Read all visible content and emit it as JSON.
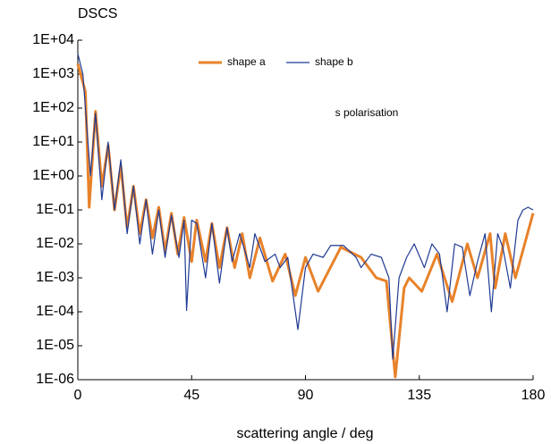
{
  "chart_data": {
    "type": "line",
    "title": "DSCS",
    "x_label": "scattering angle / deg",
    "annotation": "s polarisation",
    "log_y": true,
    "grid": false,
    "legend": "top",
    "xlim": [
      0,
      180
    ],
    "xticks": [
      0,
      45,
      90,
      135,
      180
    ],
    "ylim": [
      1e-06,
      10000
    ],
    "yticks": [
      {
        "value": 1e-06,
        "label": "1E-06"
      },
      {
        "value": 1e-05,
        "label": "1E-05"
      },
      {
        "value": 0.0001,
        "label": "1E-04"
      },
      {
        "value": 0.001,
        "label": "1E-03"
      },
      {
        "value": 0.01,
        "label": "1E-02"
      },
      {
        "value": 0.1,
        "label": "1E-01"
      },
      {
        "value": 1,
        "label": "1E+00"
      },
      {
        "value": 10,
        "label": "1E+01"
      },
      {
        "value": 100,
        "label": "1E+02"
      },
      {
        "value": 1000,
        "label": "1E+03"
      },
      {
        "value": 10000,
        "label": "1E+04"
      }
    ],
    "series": [
      {
        "name": "shape a",
        "color": "#e8822a",
        "width": 3,
        "x": [
          0,
          3,
          4.5,
          7,
          9.5,
          12,
          14.5,
          17,
          19.5,
          22,
          24.5,
          27,
          29.5,
          32,
          34.5,
          37,
          39.5,
          42,
          45,
          47,
          50.5,
          53,
          56,
          59,
          62,
          65,
          68,
          72,
          77,
          82,
          86,
          90,
          95,
          104,
          112,
          118,
          122,
          125.5,
          129,
          131,
          136,
          142,
          148,
          154,
          158,
          163,
          165,
          169,
          173,
          180
        ],
        "values": [
          2000,
          300,
          0.12,
          80,
          0.5,
          8,
          0.1,
          2,
          0.03,
          0.5,
          0.02,
          0.2,
          0.015,
          0.12,
          0.006,
          0.08,
          0.005,
          0.06,
          0.003,
          0.05,
          0.003,
          0.04,
          0.002,
          0.03,
          0.002,
          0.02,
          0.001,
          0.015,
          0.0008,
          0.005,
          0.0003,
          0.004,
          0.0004,
          0.008,
          0.004,
          0.001,
          0.0008,
          1.2e-06,
          0.0005,
          0.001,
          0.0004,
          0.005,
          0.0002,
          0.01,
          0.001,
          0.02,
          0.0005,
          0.02,
          0.001,
          0.08
        ]
      },
      {
        "name": "shape b",
        "color": "#1f3a93",
        "width": 1.2,
        "x": [
          0,
          2,
          5,
          7,
          9.5,
          12,
          14.5,
          17,
          19.5,
          22,
          24.5,
          27,
          29.5,
          32,
          34.5,
          37,
          40,
          42,
          43,
          45,
          47,
          50.5,
          53,
          56,
          59,
          61,
          64,
          68,
          70,
          74,
          78,
          80,
          83,
          87,
          90,
          93,
          97,
          100,
          105,
          110,
          112,
          116,
          120,
          123,
          124.5,
          127,
          130,
          133,
          137,
          140,
          143,
          146,
          149,
          152,
          155,
          158,
          161,
          163.5,
          166,
          168,
          171,
          174,
          176,
          178,
          180
        ],
        "values": [
          4000,
          1000,
          1,
          70,
          0.2,
          10,
          0.1,
          3,
          0.02,
          0.5,
          0.01,
          0.2,
          0.005,
          0.1,
          0.004,
          0.07,
          0.004,
          0.05,
          0.00011,
          0.05,
          0.04,
          0.001,
          0.04,
          0.0007,
          0.03,
          0.003,
          0.02,
          0.002,
          0.02,
          0.003,
          0.005,
          0.002,
          0.004,
          3e-05,
          0.002,
          0.005,
          0.004,
          0.009,
          0.009,
          0.004,
          0.002,
          0.005,
          0.004,
          0.001,
          4e-06,
          0.001,
          0.004,
          0.01,
          0.002,
          0.01,
          0.005,
          0.0001,
          0.01,
          0.008,
          0.0003,
          0.003,
          0.02,
          0.0001,
          0.02,
          0.008,
          0.0005,
          0.05,
          0.1,
          0.12,
          0.1
        ]
      }
    ]
  }
}
